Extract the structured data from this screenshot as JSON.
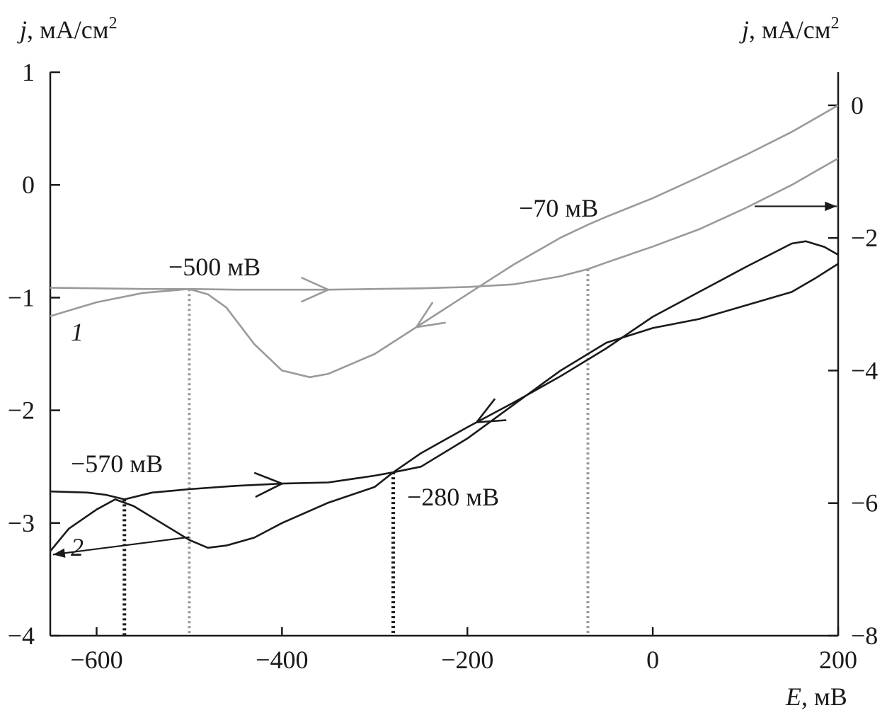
{
  "chart_data": {
    "type": "line",
    "title": "",
    "xlabel": {
      "symbol": "E",
      "unit": ", мВ"
    },
    "ylabel_left": {
      "symbol": "j",
      "unit": ", мА/см",
      "sup": "2"
    },
    "ylabel_right": {
      "symbol": "j",
      "unit": ", мА/см",
      "sup": "2"
    },
    "xlim": [
      -650,
      200
    ],
    "ylim_left": [
      -4,
      1
    ],
    "ylim_right": [
      -8,
      0.5
    ],
    "x_ticks": [
      -600,
      -400,
      -200,
      0,
      200
    ],
    "x_tick_labels": [
      "−600",
      "−400",
      "−200",
      "0",
      "200"
    ],
    "y_left_ticks": [
      1,
      0,
      -1,
      -2,
      -3,
      -4
    ],
    "y_left_tick_labels": [
      "1",
      "0",
      "−1",
      "−2",
      "−3",
      "−4"
    ],
    "y_right_ticks": [
      0,
      -2,
      -4,
      -6,
      -8
    ],
    "y_right_tick_labels": [
      "0",
      "−2",
      "−4",
      "−6",
      "−8"
    ],
    "grid": false,
    "colors": {
      "series1": "#9a9a9a",
      "series2": "#1a1a1a",
      "axes": "#1a1a1a"
    },
    "series": [
      {
        "name": "1",
        "axis": "right",
        "color": "#9a9a9a",
        "forward": {
          "x": [
            -650,
            -600,
            -550,
            -500,
            -450,
            -400,
            -350,
            -300,
            -250,
            -200,
            -150,
            -100,
            -70,
            -50,
            0,
            50,
            100,
            150,
            200
          ],
          "y": [
            -2.75,
            -2.76,
            -2.77,
            -2.77,
            -2.78,
            -2.78,
            -2.78,
            -2.77,
            -2.76,
            -2.74,
            -2.7,
            -2.58,
            -2.47,
            -2.37,
            -2.13,
            -1.87,
            -1.55,
            -1.2,
            -0.8
          ]
        },
        "reverse": {
          "x": [
            200,
            150,
            100,
            50,
            0,
            -50,
            -70,
            -100,
            -150,
            -200,
            -250,
            -300,
            -350,
            -370,
            -400,
            -430,
            -460,
            -480,
            -500,
            -550,
            -600,
            -650
          ],
          "y": [
            0,
            -0.4,
            -0.75,
            -1.08,
            -1.4,
            -1.68,
            -1.8,
            -2.0,
            -2.4,
            -2.85,
            -3.3,
            -3.75,
            -4.05,
            -4.1,
            -4.0,
            -3.6,
            -3.05,
            -2.85,
            -2.77,
            -2.83,
            -2.97,
            -3.18
          ]
        }
      },
      {
        "name": "2",
        "axis": "left",
        "forward": {
          "x": [
            -650,
            -610,
            -590,
            -570,
            -540,
            -500,
            -450,
            -400,
            -350,
            -300,
            -280,
            -250,
            -200,
            -150,
            -100,
            -70,
            -50,
            0,
            50,
            100,
            150,
            175,
            200
          ],
          "y": [
            -2.72,
            -2.73,
            -2.75,
            -2.79,
            -2.73,
            -2.7,
            -2.67,
            -2.65,
            -2.64,
            -2.58,
            -2.55,
            -2.5,
            -2.25,
            -1.95,
            -1.65,
            -1.5,
            -1.4,
            -1.27,
            -1.19,
            -1.07,
            -0.95,
            -0.83,
            -0.7
          ]
        },
        "reverse": {
          "x": [
            200,
            185,
            165,
            150,
            100,
            50,
            0,
            -50,
            -100,
            -150,
            -200,
            -250,
            -280,
            -300,
            -350,
            -400,
            -430,
            -460,
            -480,
            -500,
            -530,
            -560,
            -580,
            -600,
            -630,
            -650
          ],
          "y": [
            -0.62,
            -0.55,
            -0.5,
            -0.52,
            -0.73,
            -0.95,
            -1.17,
            -1.45,
            -1.7,
            -1.93,
            -2.15,
            -2.38,
            -2.55,
            -2.68,
            -2.82,
            -3.0,
            -3.13,
            -3.2,
            -3.22,
            -3.15,
            -3.0,
            -2.85,
            -2.79,
            -2.88,
            -3.05,
            -3.25
          ]
        }
      }
    ],
    "annotations": [
      {
        "text": "−500 мВ",
        "x": -500,
        "series": "1"
      },
      {
        "text": "−70 мВ",
        "x": -70,
        "series": "1"
      },
      {
        "text": "−570 мВ",
        "x": -570,
        "series": "2"
      },
      {
        "text": "−280 мВ",
        "x": -280,
        "series": "2"
      }
    ]
  }
}
